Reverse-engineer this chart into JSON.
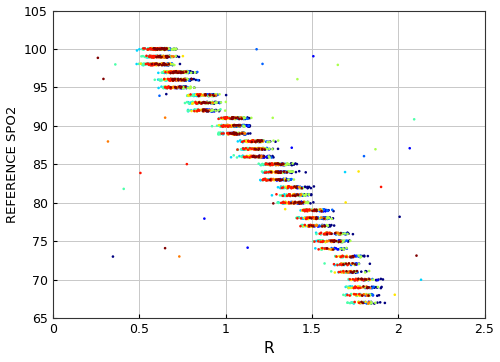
{
  "title": "",
  "xlabel": "R",
  "ylabel": "REFERENCE SPO2",
  "xlim": [
    0,
    2.5
  ],
  "ylim": [
    65,
    105
  ],
  "xticks": [
    0,
    0.5,
    1.0,
    1.5,
    2.0,
    2.5
  ],
  "yticks": [
    65,
    70,
    75,
    80,
    85,
    90,
    95,
    100,
    105
  ],
  "marker_size": 3.5,
  "figsize": [
    5.0,
    3.62
  ],
  "dpi": 100,
  "grid_color": "#c8c8c8",
  "bg_color": "#ffffff",
  "n_subjects": 10,
  "seed": 77
}
